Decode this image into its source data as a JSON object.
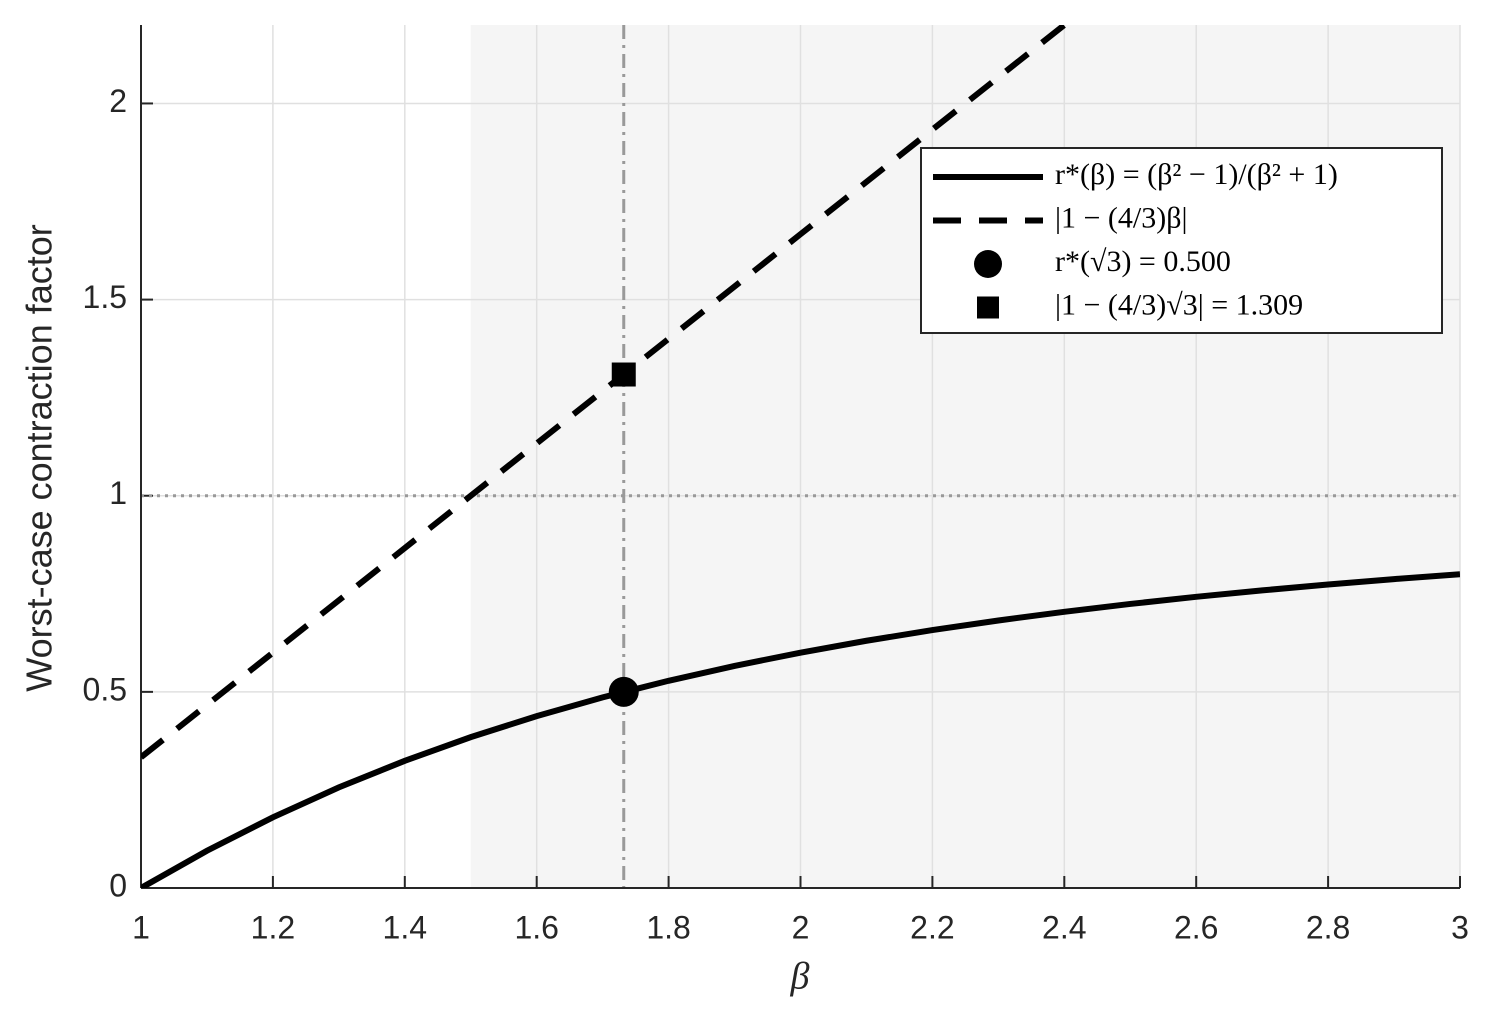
{
  "chart_data": {
    "type": "line",
    "xlabel": "β",
    "ylabel": "Worst-case contraction factor",
    "xlim": [
      1,
      3
    ],
    "ylim": [
      0,
      2.2
    ],
    "xticks": [
      1,
      1.2,
      1.4,
      1.6,
      1.8,
      2,
      2.2,
      2.4,
      2.6,
      2.8,
      3
    ],
    "yticks": [
      0,
      0.5,
      1,
      1.5,
      2
    ],
    "grid": true,
    "shaded_xrange": [
      1.5,
      3
    ],
    "vline": 1.732,
    "hline": 1,
    "legend": "upper right",
    "series": [
      {
        "name": "r*(β) = (β² − 1)/(β² + 1)",
        "color": "#000000",
        "style": "solid",
        "x": [
          1,
          1.1,
          1.2,
          1.3,
          1.4,
          1.5,
          1.6,
          1.7,
          1.8,
          1.9,
          2,
          2.1,
          2.2,
          2.3,
          2.4,
          2.5,
          2.6,
          2.7,
          2.8,
          2.9,
          3
        ],
        "values": [
          0,
          0.095,
          0.1803,
          0.2565,
          0.3243,
          0.3846,
          0.4382,
          0.4859,
          0.5283,
          0.5662,
          0.6,
          0.6303,
          0.6575,
          0.682,
          0.7041,
          0.7241,
          0.7423,
          0.7587,
          0.7738,
          0.7875,
          0.8
        ]
      },
      {
        "name": "|1 − (4/3)β|",
        "color": "#000000",
        "style": "dashed",
        "x": [
          1,
          1.5,
          2,
          2.4
        ],
        "values": [
          0.3333,
          1,
          1.6667,
          2.2
        ]
      },
      {
        "name": "r*(√3) = 0.500",
        "color": "#000000",
        "style": "circle",
        "x": [
          1.732
        ],
        "values": [
          0.5
        ]
      },
      {
        "name": "|1 − (4/3)√3| = 1.309",
        "color": "#000000",
        "style": "square",
        "x": [
          1.732
        ],
        "values": [
          1.309
        ]
      }
    ]
  }
}
